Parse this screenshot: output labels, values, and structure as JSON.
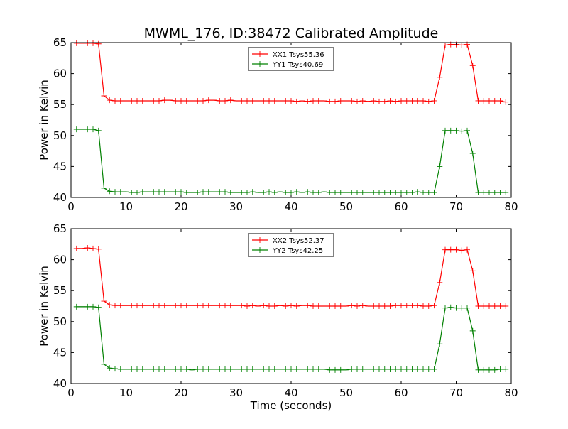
{
  "figure": {
    "title": "MWML_176, ID:38472 Calibrated Amplitude",
    "xlabel": "Time (seconds)"
  },
  "chart_data": [
    {
      "type": "line",
      "title": "MWML_176, ID:38472 Calibrated Amplitude",
      "xlabel": "",
      "ylabel": "Power in Kelvin",
      "xlim": [
        0,
        80
      ],
      "ylim": [
        40,
        65
      ],
      "xticks": [
        0,
        10,
        20,
        30,
        40,
        50,
        60,
        70,
        80
      ],
      "yticks": [
        40,
        45,
        50,
        55,
        60,
        65
      ],
      "grid": false,
      "legend_position": "top-center",
      "x": [
        1,
        2,
        3,
        4,
        5,
        6,
        7,
        8,
        9,
        10,
        11,
        12,
        13,
        14,
        15,
        16,
        17,
        18,
        19,
        20,
        21,
        22,
        23,
        24,
        25,
        26,
        27,
        28,
        29,
        30,
        31,
        32,
        33,
        34,
        35,
        36,
        37,
        38,
        39,
        40,
        41,
        42,
        43,
        44,
        45,
        46,
        47,
        48,
        49,
        50,
        51,
        52,
        53,
        54,
        55,
        56,
        57,
        58,
        59,
        60,
        61,
        62,
        63,
        64,
        65,
        66,
        67,
        68,
        69,
        70,
        71,
        72,
        73,
        74,
        75,
        76,
        77,
        78,
        79
      ],
      "series": [
        {
          "name": "XX1 Tsys55.36",
          "color": "#ff0000",
          "values": [
            64.9,
            64.9,
            64.9,
            64.9,
            64.8,
            56.4,
            55.7,
            55.6,
            55.6,
            55.6,
            55.6,
            55.6,
            55.6,
            55.6,
            55.6,
            55.6,
            55.7,
            55.7,
            55.6,
            55.6,
            55.6,
            55.6,
            55.6,
            55.6,
            55.7,
            55.7,
            55.6,
            55.6,
            55.7,
            55.6,
            55.6,
            55.6,
            55.6,
            55.6,
            55.6,
            55.6,
            55.6,
            55.6,
            55.6,
            55.6,
            55.5,
            55.6,
            55.5,
            55.6,
            55.6,
            55.6,
            55.5,
            55.5,
            55.6,
            55.6,
            55.6,
            55.5,
            55.6,
            55.5,
            55.6,
            55.5,
            55.5,
            55.6,
            55.5,
            55.6,
            55.6,
            55.6,
            55.6,
            55.6,
            55.5,
            55.6,
            59.4,
            64.6,
            64.7,
            64.7,
            64.6,
            64.7,
            61.3,
            55.6,
            55.6,
            55.6,
            55.6,
            55.6,
            55.4
          ]
        },
        {
          "name": "YY1 Tsys40.69",
          "color": "#008000",
          "values": [
            51.0,
            51.0,
            51.0,
            51.0,
            50.8,
            41.5,
            41.0,
            40.9,
            40.9,
            40.9,
            40.8,
            40.8,
            40.9,
            40.9,
            40.9,
            40.9,
            40.9,
            40.9,
            40.9,
            40.9,
            40.8,
            40.8,
            40.8,
            40.9,
            40.9,
            40.9,
            40.9,
            40.9,
            40.8,
            40.8,
            40.8,
            40.8,
            40.9,
            40.8,
            40.8,
            40.9,
            40.8,
            40.9,
            40.8,
            40.8,
            40.9,
            40.8,
            40.9,
            40.8,
            40.8,
            40.9,
            40.8,
            40.8,
            40.8,
            40.8,
            40.8,
            40.8,
            40.8,
            40.8,
            40.8,
            40.8,
            40.8,
            40.8,
            40.8,
            40.8,
            40.8,
            40.8,
            40.9,
            40.8,
            40.8,
            40.8,
            45.0,
            50.8,
            50.8,
            50.8,
            50.7,
            50.8,
            47.1,
            40.8,
            40.8,
            40.8,
            40.8,
            40.8,
            40.8
          ]
        }
      ]
    },
    {
      "type": "line",
      "title": "",
      "xlabel": "Time (seconds)",
      "ylabel": "Power in Kelvin",
      "xlim": [
        0,
        80
      ],
      "ylim": [
        40,
        65
      ],
      "xticks": [
        0,
        10,
        20,
        30,
        40,
        50,
        60,
        70,
        80
      ],
      "yticks": [
        40,
        45,
        50,
        55,
        60,
        65
      ],
      "grid": false,
      "legend_position": "top-center",
      "x": [
        1,
        2,
        3,
        4,
        5,
        6,
        7,
        8,
        9,
        10,
        11,
        12,
        13,
        14,
        15,
        16,
        17,
        18,
        19,
        20,
        21,
        22,
        23,
        24,
        25,
        26,
        27,
        28,
        29,
        30,
        31,
        32,
        33,
        34,
        35,
        36,
        37,
        38,
        39,
        40,
        41,
        42,
        43,
        44,
        45,
        46,
        47,
        48,
        49,
        50,
        51,
        52,
        53,
        54,
        55,
        56,
        57,
        58,
        59,
        60,
        61,
        62,
        63,
        64,
        65,
        66,
        67,
        68,
        69,
        70,
        71,
        72,
        73,
        74,
        75,
        76,
        77,
        78,
        79
      ],
      "series": [
        {
          "name": "XX2 Tsys52.37",
          "color": "#ff0000",
          "values": [
            61.8,
            61.8,
            61.9,
            61.8,
            61.7,
            53.3,
            52.7,
            52.6,
            52.6,
            52.6,
            52.6,
            52.6,
            52.6,
            52.6,
            52.6,
            52.6,
            52.6,
            52.6,
            52.6,
            52.6,
            52.6,
            52.6,
            52.6,
            52.6,
            52.6,
            52.6,
            52.6,
            52.6,
            52.6,
            52.6,
            52.6,
            52.5,
            52.6,
            52.5,
            52.6,
            52.5,
            52.5,
            52.6,
            52.5,
            52.6,
            52.5,
            52.6,
            52.6,
            52.5,
            52.5,
            52.5,
            52.5,
            52.5,
            52.5,
            52.5,
            52.6,
            52.5,
            52.6,
            52.5,
            52.5,
            52.5,
            52.5,
            52.5,
            52.6,
            52.6,
            52.6,
            52.6,
            52.6,
            52.5,
            52.5,
            52.6,
            56.3,
            61.6,
            61.6,
            61.6,
            61.5,
            61.6,
            58.2,
            52.5,
            52.5,
            52.5,
            52.5,
            52.5,
            52.5
          ]
        },
        {
          "name": "YY2 Tsys42.25",
          "color": "#008000",
          "values": [
            52.4,
            52.4,
            52.4,
            52.4,
            52.3,
            43.1,
            42.5,
            42.4,
            42.3,
            42.3,
            42.3,
            42.3,
            42.3,
            42.3,
            42.3,
            42.3,
            42.3,
            42.3,
            42.3,
            42.3,
            42.3,
            42.2,
            42.3,
            42.3,
            42.3,
            42.3,
            42.3,
            42.3,
            42.3,
            42.3,
            42.3,
            42.3,
            42.3,
            42.3,
            42.3,
            42.3,
            42.3,
            42.3,
            42.3,
            42.3,
            42.3,
            42.3,
            42.3,
            42.3,
            42.3,
            42.3,
            42.2,
            42.2,
            42.2,
            42.2,
            42.3,
            42.3,
            42.3,
            42.3,
            42.3,
            42.3,
            42.3,
            42.3,
            42.3,
            42.3,
            42.3,
            42.3,
            42.3,
            42.3,
            42.3,
            42.3,
            46.4,
            52.2,
            52.3,
            52.2,
            52.2,
            52.2,
            48.5,
            42.2,
            42.2,
            42.2,
            42.2,
            42.3,
            42.3
          ]
        }
      ]
    }
  ]
}
